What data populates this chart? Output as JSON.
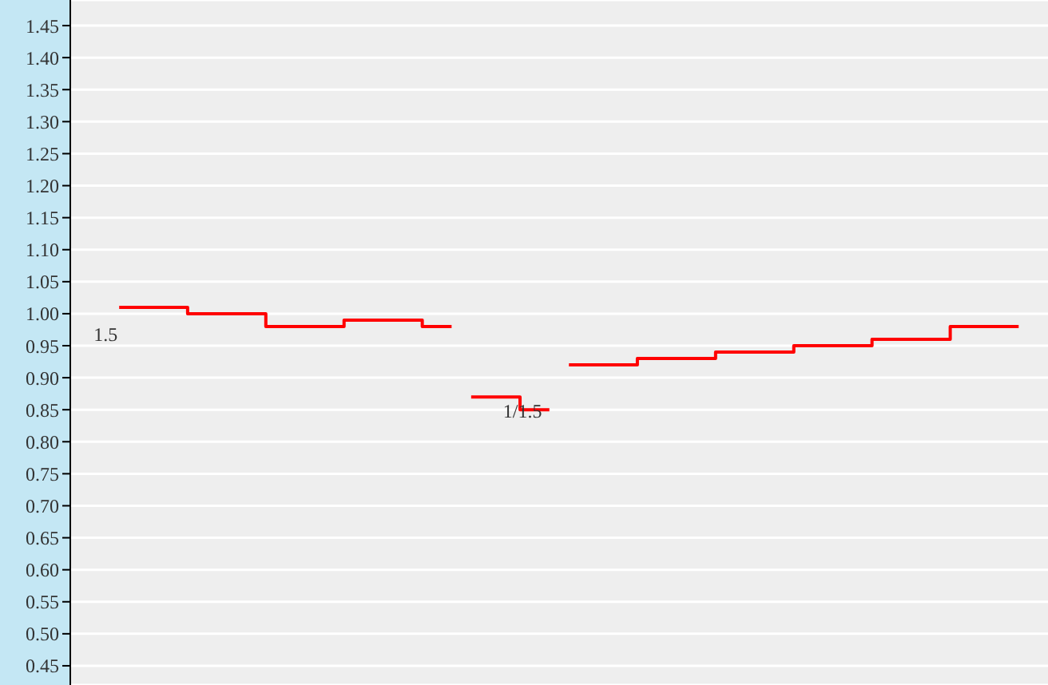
{
  "chart_data": {
    "type": "step",
    "categories": [
      null,
      null,
      null,
      null,
      null,
      null,
      null,
      null,
      null,
      null,
      null,
      null,
      null,
      null,
      null,
      null,
      null,
      null,
      null,
      null,
      null,
      null,
      null,
      null,
      null,
      null,
      null,
      null,
      null,
      null,
      null,
      null,
      null,
      null,
      null,
      null,
      null,
      null,
      null,
      null,
      null,
      null,
      null,
      null,
      null,
      null,
      null,
      null,
      null,
      null
    ],
    "series": [
      {
        "color": "#ff0000",
        "values": [
          null,
          null,
          1.01,
          1.01,
          1.01,
          1.01,
          1.0,
          1.0,
          1.0,
          1.0,
          0.98,
          0.98,
          0.98,
          0.98,
          0.99,
          0.99,
          0.99,
          0.99,
          0.98,
          0.98,
          null,
          null,
          null,
          null,
          null,
          null,
          null,
          null,
          null,
          null,
          null,
          null,
          null,
          null,
          null,
          null,
          null,
          null,
          null,
          null,
          null,
          null,
          null,
          null,
          null,
          null,
          null,
          null,
          null,
          null
        ]
      },
      {
        "color": "#ff0000",
        "values": [
          null,
          null,
          null,
          null,
          null,
          null,
          null,
          null,
          null,
          null,
          null,
          null,
          null,
          null,
          null,
          null,
          null,
          null,
          null,
          null,
          0.87,
          0.87,
          0.87,
          0.85,
          0.85,
          null,
          null,
          null,
          null,
          null,
          null,
          null,
          null,
          null,
          null,
          null,
          null,
          null,
          null,
          null,
          null,
          null,
          null,
          null,
          null,
          null,
          null,
          null,
          null,
          null
        ]
      },
      {
        "color": "#ff0000",
        "values": [
          null,
          null,
          null,
          null,
          null,
          null,
          null,
          null,
          null,
          null,
          null,
          null,
          null,
          null,
          null,
          null,
          null,
          null,
          null,
          null,
          null,
          null,
          null,
          null,
          null,
          0.92,
          0.92,
          0.92,
          0.92,
          0.93,
          0.93,
          0.93,
          0.93,
          0.94,
          0.94,
          0.94,
          0.94,
          0.95,
          0.95,
          0.95,
          0.95,
          0.96,
          0.96,
          0.96,
          0.96,
          0.98,
          0.98,
          0.98,
          0.98,
          null
        ]
      }
    ],
    "annotations": [
      "1.5",
      "1/1.5"
    ],
    "ylim": [
      0.42,
      1.49
    ],
    "yticks": [
      0.45,
      {
        "value": 0.5,
        "label": "0.50"
      },
      0.55,
      {
        "value": 0.6,
        "label": "0.60"
      },
      0.65,
      {
        "value": 0.7,
        "label": "0.70"
      },
      0.75,
      {
        "value": 0.8,
        "label": "0.80"
      },
      0.85,
      {
        "value": 0.9,
        "label": "0.90"
      },
      0.95,
      {
        "value": 1,
        "label": "1.00"
      },
      1.05,
      {
        "value": 1.1,
        "label": "1.10"
      },
      1.15,
      {
        "value": 1.2,
        "label": "1.20"
      },
      1.25,
      {
        "value": 1.3,
        "label": "1.30"
      },
      1.35,
      {
        "value": 1.4,
        "label": "1.40"
      },
      1.45
    ],
    "grid": "y"
  }
}
